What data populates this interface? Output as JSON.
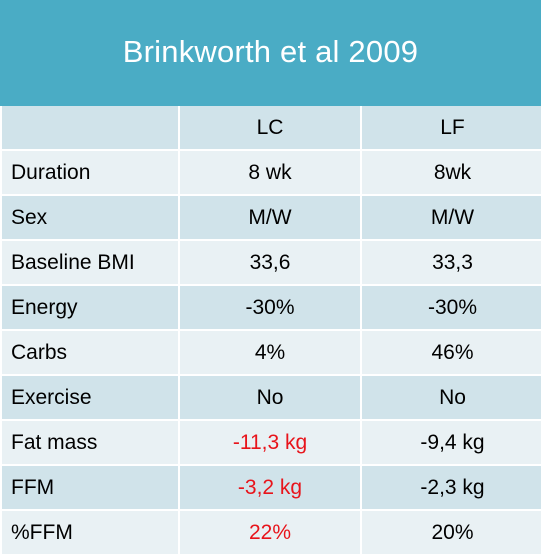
{
  "title": "Brinkworth et al 2009",
  "header": {
    "label": "",
    "col1": "LC",
    "col2": "LF"
  },
  "rows": [
    {
      "label": "Duration",
      "lc": "8 wk",
      "lf": "8wk"
    },
    {
      "label": "Sex",
      "lc": "M/W",
      "lf": "M/W"
    },
    {
      "label": "Baseline BMI",
      "lc": "33,6",
      "lf": "33,3"
    },
    {
      "label": "Energy",
      "lc": "-30%",
      "lf": "-30%"
    },
    {
      "label": "Carbs",
      "lc": "4%",
      "lf": "46%"
    },
    {
      "label": "Exercise",
      "lc": "No",
      "lf": "No"
    },
    {
      "label": "Fat mass",
      "lc": "-11,3 kg",
      "lf": "-9,4 kg"
    },
    {
      "label": "FFM",
      "lc": "-3,2 kg",
      "lf": "-2,3 kg"
    },
    {
      "label": "%FFM",
      "lc": "22%",
      "lf": "20%"
    }
  ],
  "colors": {
    "title_bg": "#4aacc5",
    "row_dark": "#d0e3ea",
    "row_light": "#e9f1f4",
    "highlight_red": "#e8141b"
  }
}
